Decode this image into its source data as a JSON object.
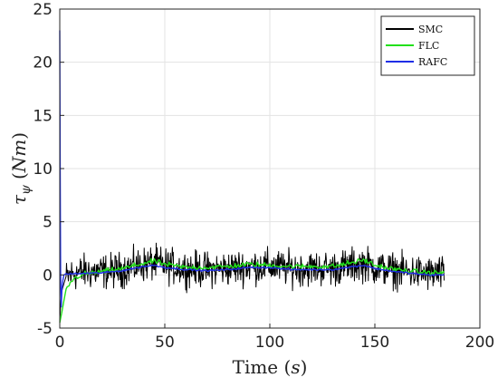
{
  "chart_data": {
    "type": "line",
    "xlabel": "Time (s)",
    "xlabel_parts": [
      "Time (",
      "s",
      ")"
    ],
    "ylabel": "τψ (Nm)",
    "ylabel_parts": [
      "τ",
      "ψ",
      "(",
      "Nm",
      ")"
    ],
    "xlim": [
      0,
      200
    ],
    "ylim": [
      -5,
      25
    ],
    "xticks": [
      0,
      50,
      100,
      150,
      200
    ],
    "yticks": [
      -5,
      0,
      5,
      10,
      15,
      20,
      25
    ],
    "grid": true,
    "legend_position": "top-right",
    "series": [
      {
        "name": "SMC",
        "color": "#000000",
        "noise_amplitude": 1.0,
        "x": [
          0,
          0.5,
          1,
          2,
          3,
          5,
          8,
          12,
          20,
          30,
          40,
          45,
          50,
          60,
          70,
          80,
          90,
          100,
          110,
          120,
          130,
          140,
          145,
          150,
          160,
          170,
          175,
          183
        ],
        "y": [
          -4.5,
          -2.5,
          -1.5,
          -0.8,
          -0.3,
          0,
          0.2,
          0.3,
          0.3,
          0.5,
          1.0,
          1.1,
          0.9,
          0.6,
          0.5,
          0.6,
          0.8,
          0.8,
          0.6,
          0.6,
          0.6,
          0.9,
          1.1,
          0.7,
          0.4,
          0.2,
          0.1,
          0.1
        ]
      },
      {
        "name": "FLC",
        "color": "#22e01a",
        "noise_amplitude": 0.15,
        "x": [
          0,
          1,
          2,
          3,
          5,
          8,
          12,
          20,
          30,
          40,
          45,
          50,
          60,
          70,
          80,
          90,
          100,
          110,
          120,
          130,
          140,
          145,
          150,
          160,
          170,
          175,
          183
        ],
        "y": [
          -4.5,
          -3.5,
          -2.4,
          -1.5,
          -0.7,
          -0.2,
          0.1,
          0.3,
          0.6,
          1.1,
          1.3,
          1.0,
          0.7,
          0.7,
          0.8,
          1.0,
          0.9,
          0.8,
          0.8,
          0.8,
          1.2,
          1.4,
          0.9,
          0.5,
          0.3,
          0.2,
          0.2
        ]
      },
      {
        "name": "RAFC",
        "color": "#1f2ee6",
        "noise_amplitude": 0.05,
        "x": [
          0,
          0.2,
          0.4,
          0.7,
          1,
          1.5,
          2,
          3,
          5,
          8,
          12,
          20,
          30,
          40,
          45,
          50,
          60,
          70,
          80,
          90,
          100,
          110,
          120,
          130,
          140,
          145,
          150,
          160,
          170,
          175,
          183
        ],
        "y": [
          23,
          10,
          0,
          -3,
          -1.5,
          -0.5,
          0,
          0.1,
          0.1,
          0.1,
          0.15,
          0.2,
          0.4,
          0.8,
          0.9,
          0.7,
          0.5,
          0.4,
          0.5,
          0.7,
          0.7,
          0.5,
          0.5,
          0.5,
          0.8,
          0.9,
          0.6,
          0.3,
          0.1,
          0,
          0
        ]
      }
    ]
  }
}
